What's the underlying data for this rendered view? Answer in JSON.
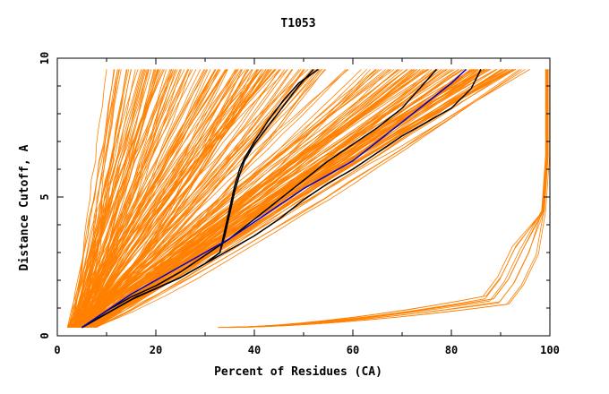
{
  "chart_data": {
    "type": "line",
    "title": "T1053",
    "xlabel": "Percent of Residues (CA)",
    "ylabel": "Distance Cutoff, A",
    "xlim": [
      0,
      100
    ],
    "ylim": [
      0,
      10
    ],
    "x_ticks": [
      "0",
      "20",
      "40",
      "60",
      "80",
      "100"
    ],
    "y_ticks": [
      "0",
      "5",
      "10"
    ],
    "grid": false,
    "colors": {
      "background_model": "#ff8000",
      "black_model": "#000000",
      "blue_model": "#0000cc"
    },
    "series_groups": {
      "steep_bundle": {
        "count": 140,
        "start_x_range": [
          2,
          6
        ],
        "start_y": 0.3,
        "end_x_range": [
          10,
          55
        ],
        "end_y": 9.6
      },
      "middle_bundle": {
        "count": 110,
        "start_x_range": [
          2,
          8
        ],
        "start_y": 0.3,
        "end_x_range": [
          58,
          96
        ],
        "end_y": 9.6
      },
      "late_bundle": {
        "count": 10,
        "start_x_range": [
          32,
          36
        ],
        "start_y": 0.3,
        "knee_x_range": [
          86,
          92
        ],
        "knee_y": 1.3,
        "end_x_range": [
          99,
          100
        ],
        "end_y": 9.6
      }
    },
    "series": [
      {
        "color": "black",
        "x": [
          5,
          8,
          12,
          16,
          20,
          25,
          30,
          33,
          34,
          35,
          36,
          37,
          38,
          40,
          43,
          46,
          49,
          52
        ],
        "y": [
          0.3,
          0.6,
          1.0,
          1.4,
          1.7,
          2.1,
          2.6,
          3.0,
          3.6,
          4.4,
          5.2,
          5.8,
          6.3,
          6.9,
          7.6,
          8.3,
          9.0,
          9.6
        ]
      },
      {
        "color": "black",
        "x": [
          5,
          8,
          12,
          16,
          20,
          25,
          30,
          33,
          34,
          35,
          36,
          37,
          38,
          40,
          43,
          46,
          49,
          53
        ],
        "y": [
          0.3,
          0.6,
          1.0,
          1.4,
          1.7,
          2.1,
          2.6,
          3.0,
          3.8,
          4.6,
          5.4,
          6.0,
          6.4,
          7.0,
          7.8,
          8.5,
          9.1,
          9.6
        ]
      },
      {
        "color": "black",
        "x": [
          5,
          10,
          15,
          20,
          25,
          30,
          35,
          40,
          45,
          50,
          55,
          60,
          65,
          70,
          75,
          80,
          84,
          86
        ],
        "y": [
          0.3,
          0.8,
          1.3,
          1.7,
          2.1,
          2.6,
          3.1,
          3.6,
          4.2,
          4.9,
          5.5,
          6.0,
          6.6,
          7.2,
          7.7,
          8.2,
          8.9,
          9.6
        ]
      },
      {
        "color": "black",
        "x": [
          5,
          10,
          15,
          20,
          25,
          30,
          35,
          40,
          45,
          50,
          55,
          60,
          65,
          70,
          74,
          77
        ],
        "y": [
          0.3,
          0.9,
          1.4,
          1.8,
          2.3,
          2.9,
          3.5,
          4.2,
          4.9,
          5.6,
          6.3,
          6.9,
          7.5,
          8.2,
          9.0,
          9.6
        ]
      },
      {
        "color": "blue",
        "x": [
          5,
          10,
          15,
          20,
          25,
          30,
          35,
          40,
          45,
          50,
          55,
          60,
          65,
          70,
          75,
          80,
          83
        ],
        "y": [
          0.3,
          0.9,
          1.5,
          2.0,
          2.5,
          3.0,
          3.5,
          4.1,
          4.7,
          5.3,
          5.8,
          6.3,
          7.0,
          7.7,
          8.4,
          9.1,
          9.6
        ]
      }
    ]
  }
}
